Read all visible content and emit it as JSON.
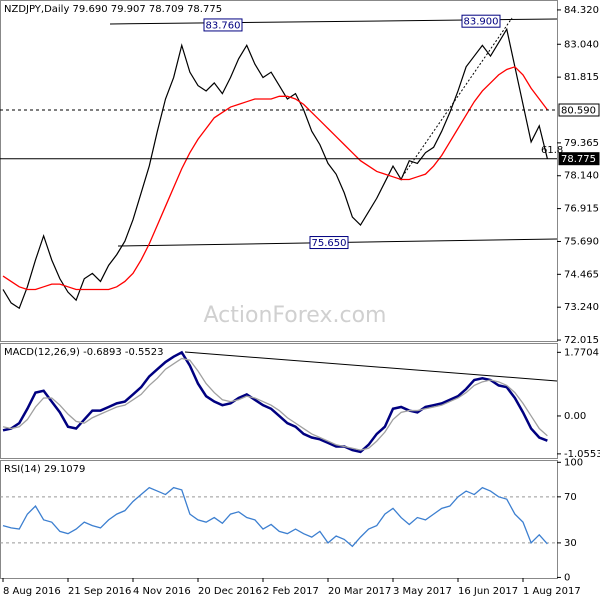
{
  "chart_data": [
    {
      "type": "line",
      "title": "NZDJPY,Daily  79.690 79.907 78.709 78.775",
      "watermark": "ActionForex.com",
      "categories": [
        "8 Aug 2016",
        null,
        null,
        null,
        null,
        null,
        null,
        null,
        "21 Sep 2016",
        null,
        null,
        null,
        null,
        null,
        null,
        null,
        "4 Nov 2016",
        null,
        null,
        null,
        null,
        null,
        null,
        null,
        "20 Dec 2016",
        null,
        null,
        null,
        null,
        null,
        null,
        null,
        "2 Feb 2017",
        null,
        null,
        null,
        null,
        null,
        null,
        null,
        "20 Mar 2017",
        null,
        null,
        null,
        null,
        null,
        null,
        null,
        "3 May 2017",
        null,
        null,
        null,
        null,
        null,
        null,
        null,
        "16 Jun 2017",
        null,
        null,
        null,
        null,
        null,
        null,
        null,
        "1 Aug 2017",
        null,
        null,
        null
      ],
      "series": [
        {
          "color": "#000000",
          "values": [
            73.9,
            73.4,
            73.2,
            74.0,
            75.0,
            75.9,
            75.0,
            74.3,
            73.8,
            73.5,
            74.3,
            74.5,
            74.2,
            74.8,
            75.2,
            75.7,
            76.5,
            77.5,
            78.5,
            79.8,
            81.0,
            81.8,
            83.0,
            82.0,
            81.5,
            81.3,
            81.6,
            81.2,
            81.8,
            82.5,
            83.0,
            82.3,
            81.8,
            82.0,
            81.5,
            81.0,
            81.2,
            80.6,
            79.8,
            79.3,
            78.6,
            78.2,
            77.5,
            76.6,
            76.3,
            76.8,
            77.3,
            77.9,
            78.5,
            78.0,
            78.7,
            78.6,
            79.0,
            79.2,
            79.8,
            80.5,
            81.3,
            82.2,
            82.6,
            83.0,
            82.6,
            83.1,
            83.6,
            82.2,
            80.8,
            79.4,
            80.0,
            78.775
          ]
        },
        {
          "color": "#ff0000",
          "values": [
            74.4,
            74.2,
            74.0,
            73.9,
            73.9,
            74.0,
            74.1,
            74.1,
            74.0,
            73.9,
            73.9,
            73.9,
            73.9,
            73.9,
            74.0,
            74.2,
            74.5,
            75.0,
            75.6,
            76.3,
            77.0,
            77.7,
            78.4,
            79.0,
            79.5,
            79.9,
            80.3,
            80.5,
            80.7,
            80.8,
            80.9,
            81.0,
            81.0,
            81.0,
            81.1,
            81.1,
            81.0,
            80.8,
            80.5,
            80.2,
            79.9,
            79.6,
            79.3,
            79.0,
            78.7,
            78.5,
            78.3,
            78.2,
            78.1,
            78.0,
            78.0,
            78.1,
            78.2,
            78.5,
            78.9,
            79.4,
            79.9,
            80.4,
            80.9,
            81.3,
            81.6,
            81.9,
            82.1,
            82.2,
            81.9,
            81.4,
            81.0,
            80.6
          ]
        }
      ],
      "ylim": [
        71.98,
        84.69
      ],
      "yticks": [
        {
          "value": 84.32,
          "label": "84.320"
        },
        {
          "value": 83.04,
          "label": "83.040"
        },
        81.815,
        79.365,
        {
          "value": 78.14,
          "label": "78.140"
        },
        76.915,
        {
          "value": 75.69,
          "label": "75.690"
        },
        74.465,
        {
          "value": 73.24,
          "label": "73.240"
        },
        72.015
      ],
      "levels": [
        {
          "value": 80.59,
          "label": "80.590",
          "style": "dashed"
        },
        {
          "value": 78.775,
          "label": "78.775",
          "style": "solid"
        }
      ],
      "annotations": [
        {
          "value": 83.76,
          "label": "83.760"
        },
        {
          "value": 83.9,
          "label": "83.900"
        },
        {
          "value": 75.65,
          "label": "75.650"
        }
      ],
      "fib_label": "61.8"
    },
    {
      "type": "line",
      "title": "MACD(12,26,9) -0.6893 -0.5523",
      "series": [
        {
          "color": "#000080",
          "values": [
            -0.4,
            -0.35,
            -0.2,
            0.2,
            0.65,
            0.7,
            0.4,
            0.1,
            -0.3,
            -0.35,
            -0.1,
            0.15,
            0.15,
            0.25,
            0.35,
            0.4,
            0.6,
            0.8,
            1.1,
            1.3,
            1.5,
            1.65,
            1.77,
            1.4,
            0.9,
            0.55,
            0.4,
            0.3,
            0.35,
            0.5,
            0.6,
            0.45,
            0.3,
            0.2,
            0.0,
            -0.2,
            -0.3,
            -0.5,
            -0.6,
            -0.65,
            -0.75,
            -0.85,
            -0.85,
            -0.95,
            -1.0,
            -0.8,
            -0.5,
            -0.3,
            0.2,
            0.25,
            0.15,
            0.1,
            0.25,
            0.3,
            0.35,
            0.45,
            0.55,
            0.75,
            1.0,
            1.05,
            1.0,
            0.85,
            0.8,
            0.5,
            0.1,
            -0.35,
            -0.6,
            -0.6893
          ]
        },
        {
          "color": "#a0a0a0",
          "values": [
            -0.3,
            -0.35,
            -0.3,
            -0.1,
            0.25,
            0.5,
            0.5,
            0.3,
            0.05,
            -0.15,
            -0.2,
            -0.05,
            0.05,
            0.15,
            0.25,
            0.3,
            0.45,
            0.6,
            0.85,
            1.05,
            1.3,
            1.45,
            1.6,
            1.55,
            1.25,
            0.9,
            0.65,
            0.45,
            0.4,
            0.45,
            0.55,
            0.5,
            0.4,
            0.3,
            0.15,
            -0.05,
            -0.2,
            -0.35,
            -0.5,
            -0.6,
            -0.7,
            -0.8,
            -0.85,
            -0.9,
            -0.95,
            -0.9,
            -0.7,
            -0.45,
            -0.1,
            0.1,
            0.15,
            0.15,
            0.2,
            0.25,
            0.3,
            0.4,
            0.5,
            0.65,
            0.85,
            0.95,
            1.0,
            0.95,
            0.85,
            0.65,
            0.35,
            0.0,
            -0.35,
            -0.5523
          ]
        }
      ],
      "ylim": [
        -1.17,
        2.03
      ],
      "yticks": [
        1.7704,
        {
          "value": 0,
          "label": "0.00"
        },
        -1.0553
      ]
    },
    {
      "type": "line",
      "title": "RSI(14) 29.1079",
      "series": [
        {
          "color": "#3c7fd0",
          "values": [
            45,
            43,
            42,
            55,
            62,
            50,
            48,
            40,
            38,
            42,
            48,
            45,
            43,
            50,
            55,
            58,
            66,
            72,
            78,
            75,
            72,
            78,
            76,
            55,
            50,
            48,
            52,
            47,
            55,
            57,
            52,
            50,
            42,
            46,
            40,
            38,
            42,
            38,
            35,
            40,
            30,
            36,
            33,
            27,
            35,
            42,
            45,
            55,
            60,
            52,
            46,
            52,
            50,
            55,
            60,
            62,
            70,
            75,
            72,
            78,
            75,
            70,
            68,
            55,
            48,
            30,
            37,
            29.1079
          ]
        }
      ],
      "ylim": [
        -0.5,
        102
      ],
      "yticks": [
        100,
        70,
        30,
        0
      ],
      "dashed_ticks": [
        70,
        30
      ]
    }
  ]
}
